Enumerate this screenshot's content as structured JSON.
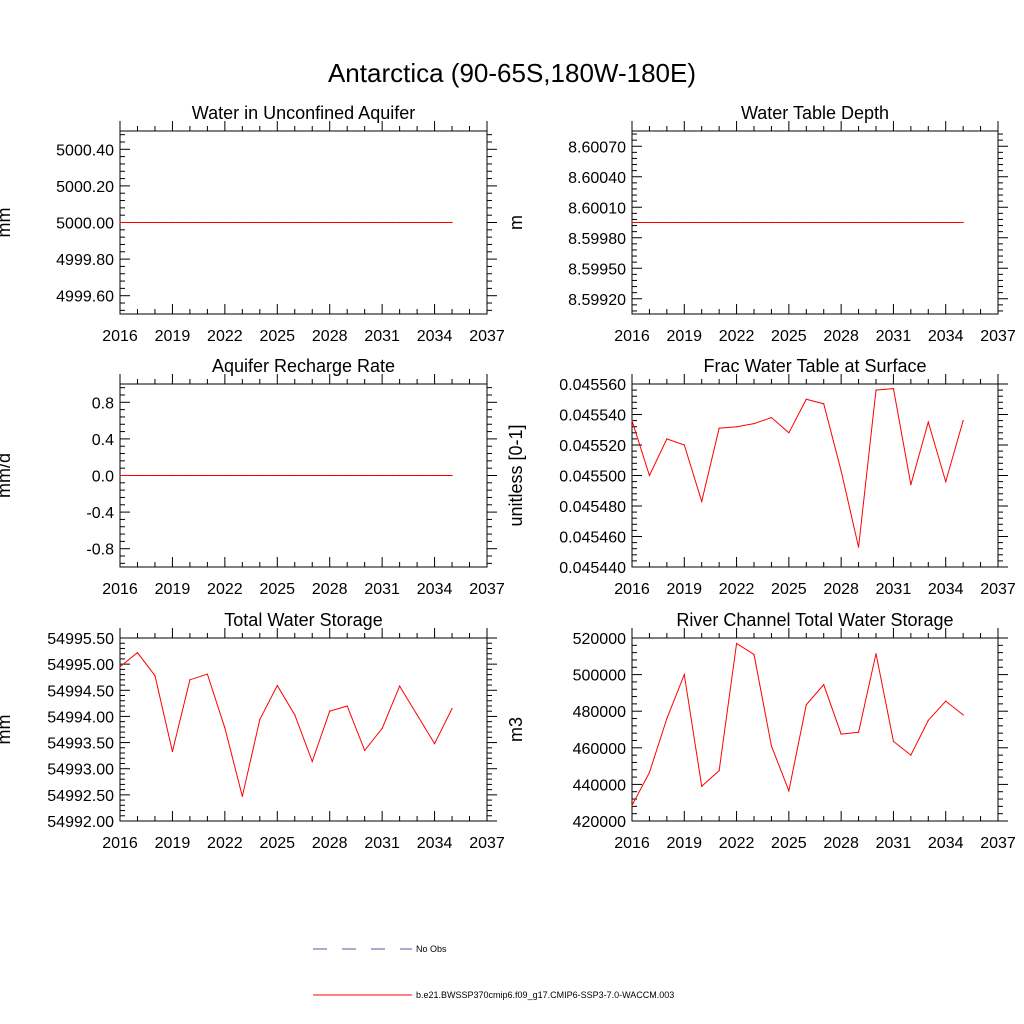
{
  "figure_title": "Antarctica (90-65S,180W-180E)",
  "legend": [
    {
      "label": "No Obs",
      "color": "#5a5aa0",
      "style": "dashed"
    },
    {
      "label": "b.e21.BWSSP370cmip6.f09_g17.CMIP6-SSP3-7.0-WACCM.003",
      "color": "#ff0000",
      "style": "solid"
    }
  ],
  "chart_data": [
    {
      "type": "line",
      "title": "Water in Unconfined Aquifer",
      "ylabel": "mm",
      "xlim": [
        2016,
        2037
      ],
      "xticks": [
        "2016",
        "2019",
        "2022",
        "2025",
        "2028",
        "2031",
        "2034",
        "2037"
      ],
      "ylim": [
        4999.5,
        5000.5
      ],
      "yticks": [
        4999.6,
        4999.8,
        5000.0,
        5000.2,
        5000.4
      ],
      "ytick_labels": [
        "4999.60",
        "4999.80",
        "5000.00",
        "5000.20",
        "5000.40"
      ],
      "x": [
        2016,
        2017,
        2018,
        2019,
        2020,
        2021,
        2022,
        2023,
        2024,
        2025,
        2026,
        2027,
        2028,
        2029,
        2030,
        2031,
        2032,
        2033,
        2034,
        2035
      ],
      "series": [
        {
          "color": "#ff0000",
          "values": [
            5000,
            5000,
            5000,
            5000,
            5000,
            5000,
            5000,
            5000,
            5000,
            5000,
            5000,
            5000,
            5000,
            5000,
            5000,
            5000,
            5000,
            5000,
            5000,
            5000
          ]
        }
      ]
    },
    {
      "type": "line",
      "title": "Water Table Depth",
      "ylabel": "m",
      "xlim": [
        2016,
        2037
      ],
      "xticks": [
        "2016",
        "2019",
        "2022",
        "2025",
        "2028",
        "2031",
        "2034",
        "2037"
      ],
      "ylim": [
        8.59905,
        8.60085
      ],
      "yticks": [
        8.5992,
        8.5995,
        8.5998,
        8.6001,
        8.6004,
        8.6007
      ],
      "ytick_labels": [
        "8.59920",
        "8.59950",
        "8.59980",
        "8.60010",
        "8.60040",
        "8.60070"
      ],
      "x": [
        2016,
        2017,
        2018,
        2019,
        2020,
        2021,
        2022,
        2023,
        2024,
        2025,
        2026,
        2027,
        2028,
        2029,
        2030,
        2031,
        2032,
        2033,
        2034,
        2035
      ],
      "series": [
        {
          "color": "#ff0000",
          "values": [
            8.59995,
            8.59995,
            8.59995,
            8.59995,
            8.59995,
            8.59995,
            8.59995,
            8.59995,
            8.59995,
            8.59995,
            8.59995,
            8.59995,
            8.59995,
            8.59995,
            8.59995,
            8.59995,
            8.59995,
            8.59995,
            8.59995,
            8.59995
          ]
        }
      ]
    },
    {
      "type": "line",
      "title": "Aquifer Recharge Rate",
      "ylabel": "mm/d",
      "xlim": [
        2016,
        2037
      ],
      "xticks": [
        "2016",
        "2019",
        "2022",
        "2025",
        "2028",
        "2031",
        "2034",
        "2037"
      ],
      "ylim": [
        -1.0,
        1.0
      ],
      "yticks": [
        -0.8,
        -0.4,
        0.0,
        0.4,
        0.8
      ],
      "ytick_labels": [
        "-0.8",
        "-0.4",
        "0.0",
        "0.4",
        "0.8"
      ],
      "x": [
        2016,
        2017,
        2018,
        2019,
        2020,
        2021,
        2022,
        2023,
        2024,
        2025,
        2026,
        2027,
        2028,
        2029,
        2030,
        2031,
        2032,
        2033,
        2034,
        2035
      ],
      "series": [
        {
          "color": "#ff0000",
          "values": [
            0,
            0,
            0,
            0,
            0,
            0,
            0,
            0,
            0,
            0,
            0,
            0,
            0,
            0,
            0,
            0,
            0,
            0,
            0,
            0
          ]
        }
      ]
    },
    {
      "type": "line",
      "title": "Frac Water Table at Surface",
      "ylabel": "unitless [0-1]",
      "xlim": [
        2016,
        2037
      ],
      "xticks": [
        "2016",
        "2019",
        "2022",
        "2025",
        "2028",
        "2031",
        "2034",
        "2037"
      ],
      "ylim": [
        0.04544,
        0.04556
      ],
      "yticks": [
        0.04544,
        0.04546,
        0.04548,
        0.0455,
        0.04552,
        0.04554,
        0.04556
      ],
      "ytick_labels": [
        "0.045440",
        "0.045460",
        "0.045480",
        "0.045500",
        "0.045520",
        "0.045540",
        "0.045560"
      ],
      "x": [
        2016,
        2017,
        2018,
        2019,
        2020,
        2021,
        2022,
        2023,
        2024,
        2025,
        2026,
        2027,
        2028,
        2029,
        2030,
        2031,
        2032,
        2033,
        2034,
        2035
      ],
      "series": [
        {
          "color": "#ff0000",
          "values": [
            0.045536,
            0.0455,
            0.045524,
            0.04552,
            0.045483,
            0.045531,
            0.045532,
            0.045534,
            0.045538,
            0.045528,
            0.04555,
            0.045547,
            0.045503,
            0.045453,
            0.045556,
            0.045557,
            0.045494,
            0.045535,
            0.045496,
            0.045536
          ]
        }
      ]
    },
    {
      "type": "line",
      "title": "Total Water Storage",
      "ylabel": "mm",
      "xlim": [
        2016,
        2037
      ],
      "xticks": [
        "2016",
        "2019",
        "2022",
        "2025",
        "2028",
        "2031",
        "2034",
        "2037"
      ],
      "ylim": [
        54992.0,
        54995.5
      ],
      "yticks": [
        54992.0,
        54992.5,
        54993.0,
        54993.5,
        54994.0,
        54994.5,
        54995.0,
        54995.5
      ],
      "ytick_labels": [
        "54992.00",
        "54992.50",
        "54993.00",
        "54993.50",
        "54994.00",
        "54994.50",
        "54995.00",
        "54995.50"
      ],
      "x": [
        2016,
        2017,
        2018,
        2019,
        2020,
        2021,
        2022,
        2023,
        2024,
        2025,
        2026,
        2027,
        2028,
        2029,
        2030,
        2031,
        2032,
        2033,
        2034,
        2035
      ],
      "series": [
        {
          "color": "#ff0000",
          "values": [
            54994.95,
            54995.22,
            54994.78,
            54993.33,
            54994.7,
            54994.81,
            54993.78,
            54992.47,
            54993.94,
            54994.59,
            54994.03,
            54993.14,
            54994.1,
            54994.2,
            54993.35,
            54993.77,
            54994.58,
            54994.03,
            54993.48,
            54994.15
          ]
        }
      ]
    },
    {
      "type": "line",
      "title": "River Channel Total Water Storage",
      "ylabel": "m3",
      "xlim": [
        2016,
        2037
      ],
      "xticks": [
        "2016",
        "2019",
        "2022",
        "2025",
        "2028",
        "2031",
        "2034",
        "2037"
      ],
      "ylim": [
        420000,
        520000
      ],
      "yticks": [
        420000,
        440000,
        460000,
        480000,
        500000,
        520000
      ],
      "ytick_labels": [
        "420000",
        "440000",
        "460000",
        "480000",
        "500000",
        "520000"
      ],
      "x": [
        2016,
        2017,
        2018,
        2019,
        2020,
        2021,
        2022,
        2023,
        2024,
        2025,
        2026,
        2027,
        2028,
        2029,
        2030,
        2031,
        2032,
        2033,
        2034,
        2035
      ],
      "series": [
        {
          "color": "#ff0000",
          "values": [
            428500,
            446500,
            476000,
            500000,
            439000,
            447500,
            517000,
            511000,
            461000,
            436500,
            483500,
            494500,
            467500,
            468500,
            511500,
            463500,
            456000,
            475000,
            485500,
            478000
          ]
        }
      ]
    }
  ]
}
